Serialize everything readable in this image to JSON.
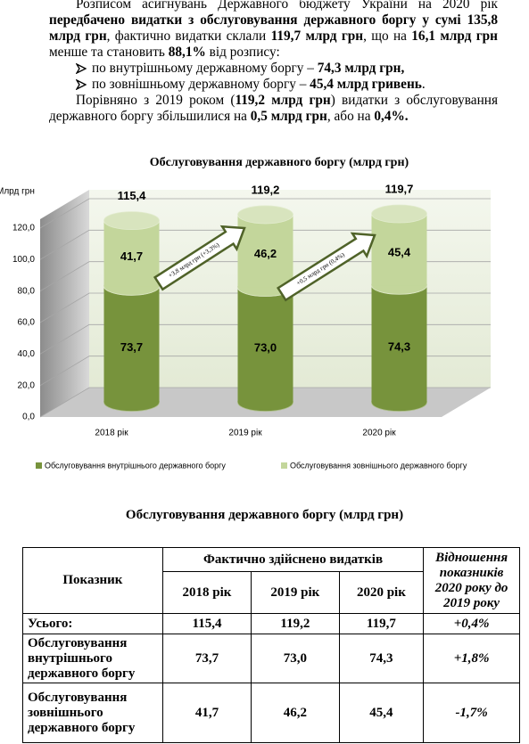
{
  "text": {
    "paragraph_1": [
      {
        "text": "Розписом асигнувань Державного бюджету України на 2020 рік ",
        "bold": false
      },
      {
        "text": "передбачено видатки з обслуговування державного боргу у сумі 135,8 млрд грн",
        "bold": true
      },
      {
        "text": ", фактично видатки склали ",
        "bold": false
      },
      {
        "text": "119,7 млрд грн",
        "bold": true
      },
      {
        "text": ", що на ",
        "bold": false
      },
      {
        "text": "16,1 млрд грн",
        "bold": true
      },
      {
        "text": " менше та становить ",
        "bold": false
      },
      {
        "text": "88,1%",
        "bold": true
      },
      {
        "text": " від розпису:",
        "bold": false
      }
    ],
    "bullets": [
      [
        {
          "text": "по внутрішньому державному боргу – ",
          "bold": false
        },
        {
          "text": "74,3 млрд грн,",
          "bold": true
        }
      ],
      [
        {
          "text": "по зовнішньому державному боргу – ",
          "bold": false
        },
        {
          "text": "45,4 млрд гривень",
          "bold": true
        },
        {
          "text": ".",
          "bold": false
        }
      ]
    ],
    "paragraph_2": [
      {
        "text": "Порівняно з 2019 роком (",
        "bold": false
      },
      {
        "text": "119,2 млрд грн",
        "bold": true
      },
      {
        "text": ") видатки з обслуговування державного боргу збільшилися на ",
        "bold": false
      },
      {
        "text": "0,5 млрд грн",
        "bold": true
      },
      {
        "text": ", або на ",
        "bold": false
      },
      {
        "text": "0,4%.",
        "bold": true
      }
    ]
  },
  "chart_data": {
    "type": "stacked_cylinder",
    "title": "Обслуговування державного боргу (млрд грн)",
    "y_label": "Млрд грн",
    "categories": [
      "2018 рік",
      "2019 рік",
      "2020 рік"
    ],
    "series": [
      {
        "name": "Обслуговування внутрішнього державного боргу",
        "color": "#77933c",
        "values": [
          73.7,
          73.0,
          74.3
        ],
        "value_labels": [
          "73,7",
          "73,0",
          "74,3"
        ]
      },
      {
        "name": "Обслуговування зовнішнього державного боргу",
        "color": "#c3d69b",
        "values": [
          41.7,
          46.2,
          45.4
        ],
        "value_labels": [
          "41,7",
          "46,2",
          "45,4"
        ]
      }
    ],
    "totals": {
      "values": [
        115.4,
        119.2,
        119.7
      ],
      "value_labels": [
        "115,4",
        "119,2",
        "119,7"
      ]
    },
    "annotations": [
      "+3,8 млрд грн (+3,3%)",
      "+0,5 млрд грн (0,4%)"
    ],
    "ylim": [
      0,
      120
    ],
    "yticks": [
      {
        "value": 0,
        "label": "0,0"
      },
      {
        "value": 20,
        "label": "20,0"
      },
      {
        "value": 40,
        "label": "40,0"
      },
      {
        "value": 60,
        "label": "60,0"
      },
      {
        "value": 80,
        "label": "80,0"
      },
      {
        "value": 100,
        "label": "100,0"
      },
      {
        "value": 120,
        "label": "120,0"
      }
    ],
    "grid": true,
    "legend": "bottom"
  },
  "table": {
    "title": "Обслуговування державного боргу (млрд грн)",
    "header": {
      "indicator": "Показник",
      "group": "Фактично здійснено видатків",
      "years": [
        "2018 рік",
        "2019 рік",
        "2020 рік"
      ],
      "ratio": "Відношення показників 2020 року до 2019 року"
    },
    "rows": [
      [
        "Усього:",
        "115,4",
        "119,2",
        "119,7",
        "+0,4%"
      ],
      [
        "Обслуговування внутрішнього державного боргу",
        "73,7",
        "73,0",
        "74,3",
        "+1,8%"
      ],
      [
        "Обслуговування зовнішнього державного боргу",
        "41,7",
        "46,2",
        "45,4",
        "-1,7%"
      ]
    ]
  }
}
